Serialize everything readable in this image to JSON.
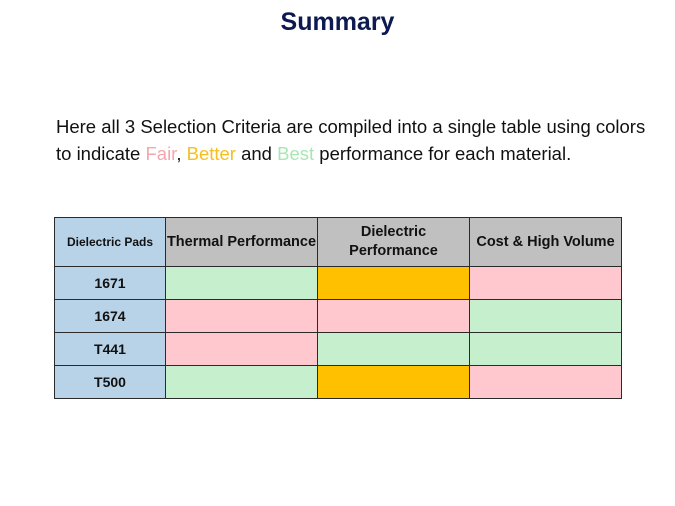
{
  "title": "Summary",
  "intro": {
    "part1": "Here all 3 Selection Criteria are compiled into a single table using colors to indicate ",
    "fair": "Fair",
    "comma": ", ",
    "better": "Better",
    "and": " and ",
    "best": "Best",
    "part2": " performance for each material."
  },
  "legend_colors": {
    "fair": "#f6a6ae",
    "better": "#f5bf1e",
    "best": "#a8e6b4"
  },
  "cell_colors": {
    "fair": "#ffc7ce",
    "better": "#ffc000",
    "best": "#c6efce"
  },
  "table": {
    "corner_label": "Dielectric Pads",
    "columns": [
      "Thermal Performance",
      "Dielectric Performance",
      "Cost & High Volume"
    ],
    "rows": [
      {
        "material": "1671",
        "ratings": [
          "best",
          "better",
          "fair"
        ]
      },
      {
        "material": "1674",
        "ratings": [
          "fair",
          "fair",
          "best"
        ]
      },
      {
        "material": "T441",
        "ratings": [
          "fair",
          "best",
          "best"
        ]
      },
      {
        "material": "T500",
        "ratings": [
          "best",
          "better",
          "fair"
        ]
      }
    ]
  }
}
